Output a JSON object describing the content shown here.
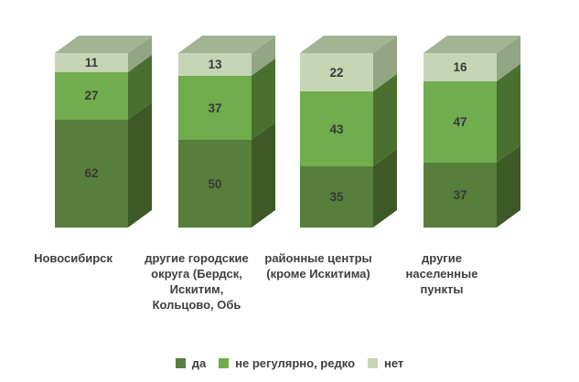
{
  "chart_data": {
    "type": "bar",
    "subtype": "stacked-3d-column",
    "title": "",
    "xlabel": "",
    "ylabel": "",
    "ylim": [
      0,
      100
    ],
    "grid": false,
    "legend_position": "bottom",
    "value_labels_shown": true,
    "categories": [
      "Новосибирск",
      "другие городские округа (Бердск, Искитим, Кольцово, Обь",
      "районные центры (кроме Искитима)",
      "другие населенные пункты"
    ],
    "category_label_lines": [
      [
        "Новосибирск"
      ],
      [
        "другие городские",
        "округа (Бердск,",
        "Искитим,",
        "Кольцово, Обь"
      ],
      [
        "районные центры",
        "(кроме Искитима)"
      ],
      [
        "другие",
        "населенные",
        "пункты"
      ]
    ],
    "series": [
      {
        "key": "da",
        "name": "да",
        "values": [
          62,
          50,
          35,
          37
        ],
        "color": "#577e3b",
        "side_color": "#3d5a26"
      },
      {
        "key": "nereg",
        "name": "не регулярно, редко",
        "values": [
          27,
          37,
          43,
          47
        ],
        "color": "#6fad4d",
        "side_color": "#4a7030"
      },
      {
        "key": "net",
        "name": "нет",
        "values": [
          11,
          13,
          22,
          16
        ],
        "color": "#c6d6b5",
        "side_color": "#93a683"
      }
    ],
    "top_face_color": "#a2b492"
  },
  "colors": {
    "background": "#ffffff",
    "value_label_text": "#383838",
    "axis_label_text": "#3f3f3f"
  }
}
